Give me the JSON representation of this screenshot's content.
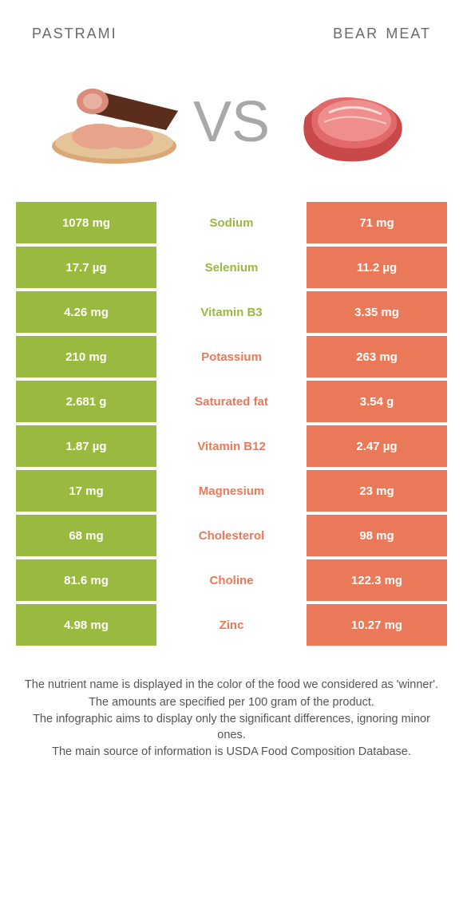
{
  "colors": {
    "left": "#9ab93f",
    "right": "#ea7959",
    "mid_bg": "#ffffff",
    "left_label": "#9ab93f",
    "right_label": "#ea7959",
    "cell_text": "#ffffff"
  },
  "header": {
    "left_title": "pastrami",
    "right_title": "bear meat"
  },
  "hero": {
    "vs": "VS"
  },
  "rows": [
    {
      "left": "1078 mg",
      "label": "Sodium",
      "right": "71 mg",
      "winner": "left"
    },
    {
      "left": "17.7 µg",
      "label": "Selenium",
      "right": "11.2 µg",
      "winner": "left"
    },
    {
      "left": "4.26 mg",
      "label": "Vitamin B3",
      "right": "3.35 mg",
      "winner": "left"
    },
    {
      "left": "210 mg",
      "label": "Potassium",
      "right": "263 mg",
      "winner": "right"
    },
    {
      "left": "2.681 g",
      "label": "Saturated fat",
      "right": "3.54 g",
      "winner": "right"
    },
    {
      "left": "1.87 µg",
      "label": "Vitamin B12",
      "right": "2.47 µg",
      "winner": "right"
    },
    {
      "left": "17 mg",
      "label": "Magnesium",
      "right": "23 mg",
      "winner": "right"
    },
    {
      "left": "68 mg",
      "label": "Cholesterol",
      "right": "98 mg",
      "winner": "right"
    },
    {
      "left": "81.6 mg",
      "label": "Choline",
      "right": "122.3 mg",
      "winner": "right"
    },
    {
      "left": "4.98 mg",
      "label": "Zinc",
      "right": "10.27 mg",
      "winner": "right"
    }
  ],
  "footnotes": [
    "The nutrient name is displayed in the color of the food we considered as 'winner'.",
    "The amounts are specified per 100 gram of the product.",
    "The infographic aims to display only the significant differences, ignoring minor ones.",
    "The main source of information is USDA Food Composition Database."
  ]
}
